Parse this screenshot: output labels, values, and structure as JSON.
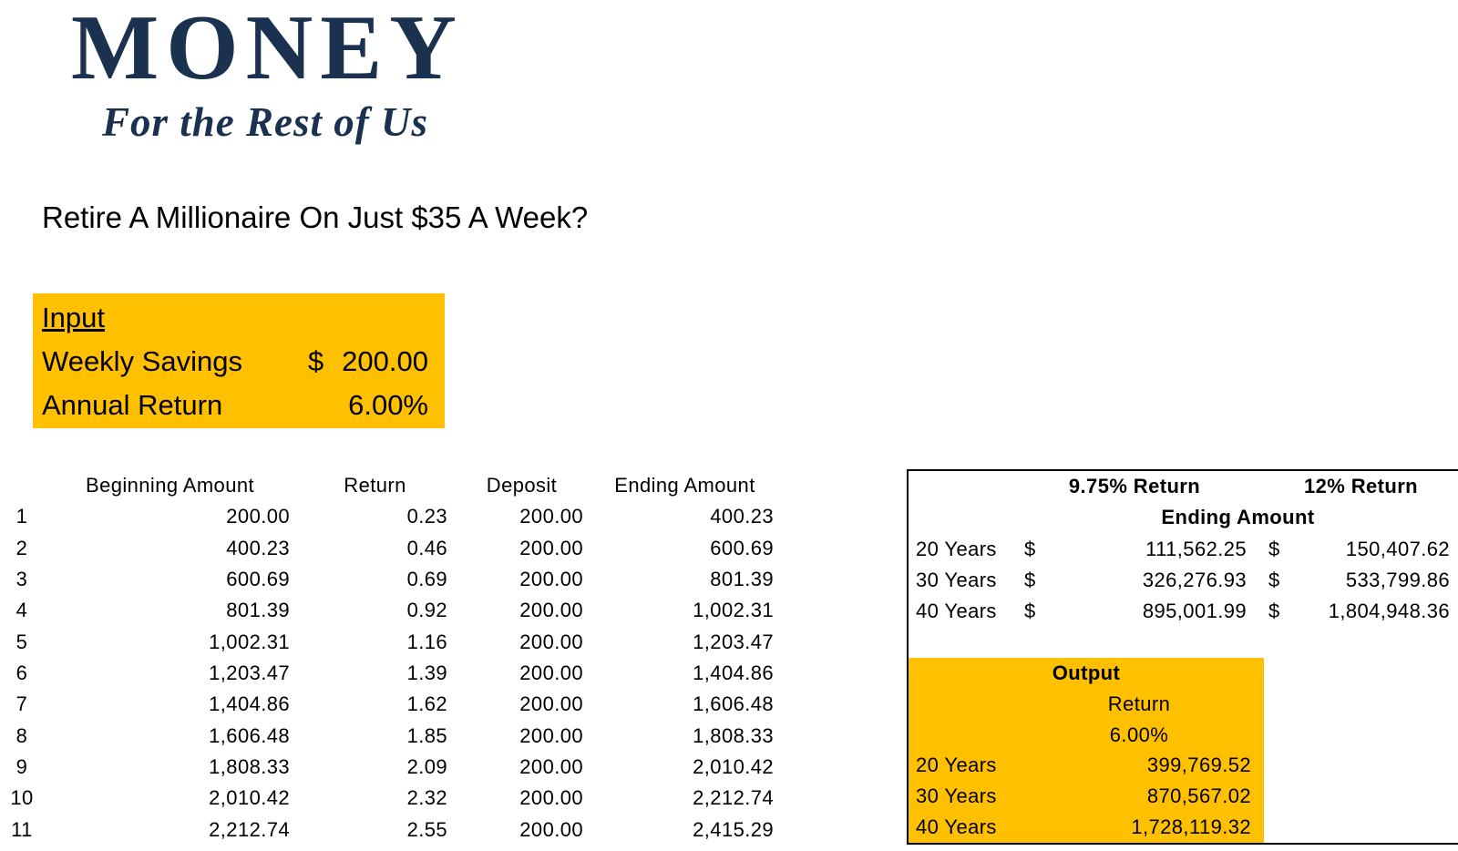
{
  "brand": {
    "logo_text": "MONEY",
    "logo_tagline": "For the Rest of Us"
  },
  "title": "Retire A Millionaire On Just $35 A Week?",
  "colors": {
    "accent_orange": "#FFC000",
    "brand_navy": "#1B3150",
    "panel_border": "#000000"
  },
  "input_panel": {
    "heading": "Input",
    "weekly_savings_label": "Weekly Savings",
    "currency_symbol": "$",
    "weekly_savings_value": "200.00",
    "annual_return_label": "Annual Return",
    "annual_return_value": "6.00%"
  },
  "growth_table": {
    "headers": {
      "beginning": "Beginning Amount",
      "ret": "Return",
      "deposit": "Deposit",
      "ending": "Ending Amount"
    },
    "rows": [
      {
        "week": "1",
        "beginning": "200.00",
        "ret": "0.23",
        "deposit": "200.00",
        "ending": "400.23"
      },
      {
        "week": "2",
        "beginning": "400.23",
        "ret": "0.46",
        "deposit": "200.00",
        "ending": "600.69"
      },
      {
        "week": "3",
        "beginning": "600.69",
        "ret": "0.69",
        "deposit": "200.00",
        "ending": "801.39"
      },
      {
        "week": "4",
        "beginning": "801.39",
        "ret": "0.92",
        "deposit": "200.00",
        "ending": "1,002.31"
      },
      {
        "week": "5",
        "beginning": "1,002.31",
        "ret": "1.16",
        "deposit": "200.00",
        "ending": "1,203.47"
      },
      {
        "week": "6",
        "beginning": "1,203.47",
        "ret": "1.39",
        "deposit": "200.00",
        "ending": "1,404.86"
      },
      {
        "week": "7",
        "beginning": "1,404.86",
        "ret": "1.62",
        "deposit": "200.00",
        "ending": "1,606.48"
      },
      {
        "week": "8",
        "beginning": "1,606.48",
        "ret": "1.85",
        "deposit": "200.00",
        "ending": "1,808.33"
      },
      {
        "week": "9",
        "beginning": "1,808.33",
        "ret": "2.09",
        "deposit": "200.00",
        "ending": "2,010.42"
      },
      {
        "week": "10",
        "beginning": "2,010.42",
        "ret": "2.32",
        "deposit": "200.00",
        "ending": "2,212.74"
      },
      {
        "week": "11",
        "beginning": "2,212.74",
        "ret": "2.55",
        "deposit": "200.00",
        "ending": "2,415.29"
      }
    ]
  },
  "comparison_panel": {
    "header_975": "9.75% Return",
    "header_12": "12% Return",
    "subheader": "Ending Amount",
    "currency_symbol": "$",
    "rows": [
      {
        "label": "20 Years",
        "return_975": "111,562.25",
        "return_12": "150,407.62"
      },
      {
        "label": "30 Years",
        "return_975": "326,276.93",
        "return_12": "533,799.86"
      },
      {
        "label": "40 Years",
        "return_975": "895,001.99",
        "return_12": "1,804,948.36"
      }
    ]
  },
  "output_panel": {
    "heading": "Output",
    "return_label": "Return",
    "return_value": "6.00%",
    "rows": [
      {
        "label": "20 Years",
        "value": "399,769.52"
      },
      {
        "label": "30 Years",
        "value": "870,567.02"
      },
      {
        "label": "40 Years",
        "value": "1,728,119.32"
      }
    ]
  }
}
